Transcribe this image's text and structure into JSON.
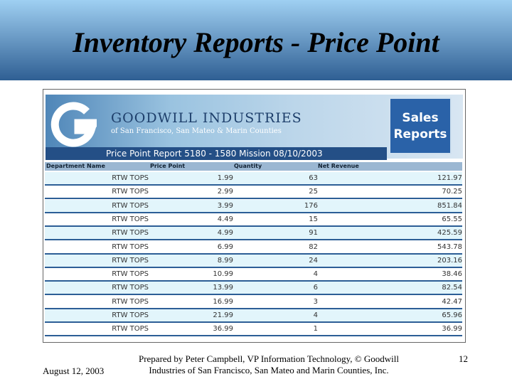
{
  "slide": {
    "title": "Inventory Reports - Price Point",
    "footer": {
      "date": "August 12, 2003",
      "credit_line1": "Prepared by Peter Campbell, VP Information Technology, © Goodwill",
      "credit_line2": "Industries of San Francisco, San Mateo and Marin Counties, Inc.",
      "page": "12"
    }
  },
  "report": {
    "org_name": "GOODWILL INDUSTRIES",
    "org_sub": "of San Francisco, San Mateo & Marin Counties",
    "badge_line1": "Sales",
    "badge_line2": "Reports",
    "report_title": "Price Point Report 5180 - 1580 Mission 08/10/2003",
    "table": {
      "headers": [
        "Department Name",
        "Price Point",
        "Quantity",
        "Net Revenue"
      ],
      "rows": [
        [
          "RTW TOPS",
          "1.99",
          "63",
          "121.97"
        ],
        [
          "RTW TOPS",
          "2.99",
          "25",
          "70.25"
        ],
        [
          "RTW TOPS",
          "3.99",
          "176",
          "851.84"
        ],
        [
          "RTW TOPS",
          "4.49",
          "15",
          "65.55"
        ],
        [
          "RTW TOPS",
          "4.99",
          "91",
          "425.59"
        ],
        [
          "RTW TOPS",
          "6.99",
          "82",
          "543.78"
        ],
        [
          "RTW TOPS",
          "8.99",
          "24",
          "203.16"
        ],
        [
          "RTW TOPS",
          "10.99",
          "4",
          "38.46"
        ],
        [
          "RTW TOPS",
          "13.99",
          "6",
          "82.54"
        ],
        [
          "RTW TOPS",
          "16.99",
          "3",
          "42.47"
        ],
        [
          "RTW TOPS",
          "21.99",
          "4",
          "65.96"
        ],
        [
          "RTW TOPS",
          "36.99",
          "1",
          "36.99"
        ]
      ]
    }
  }
}
